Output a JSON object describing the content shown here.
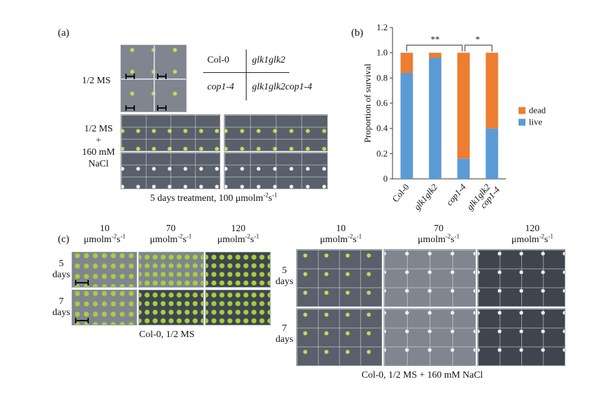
{
  "panel_a": {
    "label": "(a)",
    "row_ms": "1/2 MS",
    "row_nacl_1": "1/2 MS",
    "row_nacl_2": "+",
    "row_nacl_3": "160 mM",
    "row_nacl_4": "NaCl",
    "key": {
      "top_left": "Col-0",
      "top_right": "glk1glk2",
      "bottom_left": "cop1-4",
      "bottom_right": "glk1glk2cop1-4"
    },
    "caption_main": "5 days treatment, 100 μmolm",
    "caption_exp1": "-2",
    "caption_mid": "s",
    "caption_exp2": "-1"
  },
  "panel_b": {
    "label": "(b)",
    "chart_data": {
      "type": "bar",
      "stacked": true,
      "categories": [
        "Col-0",
        "glk1glk2",
        "cop1-4",
        "glk1glk2 cop1-4"
      ],
      "series": [
        {
          "name": "live",
          "values": [
            0.84,
            0.96,
            0.16,
            0.4
          ],
          "color": "#5b9bd5"
        },
        {
          "name": "dead",
          "values": [
            0.16,
            0.04,
            0.84,
            0.6
          ],
          "color": "#ed7d31"
        }
      ],
      "ylabel": "Proportion of survival",
      "ylim": [
        0,
        1.2
      ],
      "yticks": [
        "0",
        "0.2",
        "0.4",
        "0.6",
        "0.8",
        "1.0",
        "1.2"
      ],
      "xtick_labels": [
        "Col-0",
        "glk1glk2",
        "cop1-4",
        "glk1glk2",
        "cop1-4"
      ],
      "legend_position": "right",
      "legend": [
        {
          "name": "dead",
          "color": "#ed7d31"
        },
        {
          "name": "live",
          "color": "#5b9bd5"
        }
      ],
      "annotations": [
        {
          "text": "**",
          "between": [
            "Col-0",
            "cop1-4"
          ]
        },
        {
          "text": "*",
          "between": [
            "cop1-4",
            "glk1glk2 cop1-4"
          ]
        }
      ]
    }
  },
  "panel_c": {
    "label": "(c)",
    "intensity": [
      "10",
      "70",
      "120"
    ],
    "unit_main": "μmolm",
    "unit_exp1": "-2",
    "unit_mid": "s",
    "unit_exp2": "-1",
    "day5_num": "5",
    "day7_num": "7",
    "days_word": "days",
    "caption_left": "Col-0, 1/2 MS",
    "caption_right": "Col-0, 1/2 MS + 160 mM NaCl"
  }
}
